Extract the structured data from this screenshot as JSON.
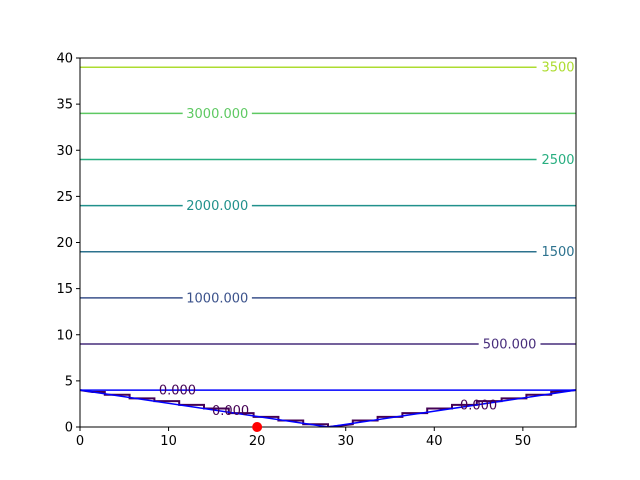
{
  "chart_data": {
    "type": "line",
    "title": "",
    "xlabel": "",
    "ylabel": "",
    "xlim": [
      0,
      56
    ],
    "ylim": [
      0,
      40
    ],
    "x_ticks": [
      0,
      10,
      20,
      30,
      40,
      50
    ],
    "y_ticks": [
      0,
      5,
      10,
      15,
      20,
      25,
      30,
      35,
      40
    ],
    "grid": false,
    "legend": "none",
    "contour_levels": [
      {
        "value": 0,
        "y": 4,
        "color": "#440154",
        "labels": [
          {
            "text": "0.000",
            "x": 11
          },
          {
            "text": "0.000",
            "x": 17
          },
          {
            "text": "0.000",
            "x": 45
          }
        ]
      },
      {
        "value": 500,
        "y": 9,
        "color": "#472d7b",
        "labels": [
          {
            "text": "500.000",
            "x": 48.5
          }
        ]
      },
      {
        "value": 1000,
        "y": 14,
        "color": "#3b528b",
        "labels": [
          {
            "text": "1000.000",
            "x": 15.5
          }
        ]
      },
      {
        "value": 1500,
        "y": 19,
        "color": "#2c728e",
        "labels": [
          {
            "text": "1500.",
            "x": 54.2
          }
        ]
      },
      {
        "value": 2000,
        "y": 24,
        "color": "#21918c",
        "labels": [
          {
            "text": "2000.000",
            "x": 15.5
          }
        ]
      },
      {
        "value": 2500,
        "y": 29,
        "color": "#28ae80",
        "labels": [
          {
            "text": "2500.",
            "x": 54.2
          }
        ]
      },
      {
        "value": 3000,
        "y": 34,
        "color": "#5ec962",
        "labels": [
          {
            "text": "3000.000",
            "x": 15.5
          }
        ]
      },
      {
        "value": 3500,
        "y": 39,
        "color": "#addc30",
        "labels": [
          {
            "text": "3500.",
            "x": 54.2
          }
        ]
      }
    ],
    "boundary_lines": [
      {
        "color": "#0000ff",
        "x": [
          0,
          56
        ],
        "y": [
          4,
          4
        ]
      },
      {
        "color": "#0000ff",
        "x": [
          0,
          28,
          56
        ],
        "y": [
          4,
          0,
          4
        ]
      }
    ],
    "zero_contour_step": {
      "color": "#440154",
      "x": [
        0,
        1.4,
        2.8,
        2.8,
        5.6,
        5.6,
        8.4,
        8.4,
        11.2,
        11.2,
        14,
        14,
        16.8,
        16.8,
        19.6,
        19.6,
        22.4,
        22.4,
        25.2,
        25.2,
        28,
        28,
        30.8,
        30.8,
        33.6,
        33.6,
        36.4,
        36.4,
        39.2,
        39.2,
        42,
        42,
        44.8,
        44.8,
        47.6,
        47.6,
        50.4,
        50.4,
        53.2,
        53.2,
        56
      ],
      "y": [
        4,
        3.8,
        3.8,
        3.5,
        3.5,
        3.1,
        3.1,
        2.8,
        2.8,
        2.4,
        2.4,
        2.0,
        2.0,
        1.5,
        1.5,
        1.1,
        1.1,
        0.7,
        0.7,
        0.3,
        0.3,
        0.0,
        0.3,
        0.7,
        0.7,
        1.1,
        1.1,
        1.5,
        1.5,
        2.0,
        2.0,
        2.4,
        2.4,
        2.8,
        2.8,
        3.1,
        3.1,
        3.5,
        3.5,
        3.8,
        4
      ]
    },
    "points": [
      {
        "x": 20,
        "y": 0,
        "color": "#ff0000"
      }
    ]
  }
}
